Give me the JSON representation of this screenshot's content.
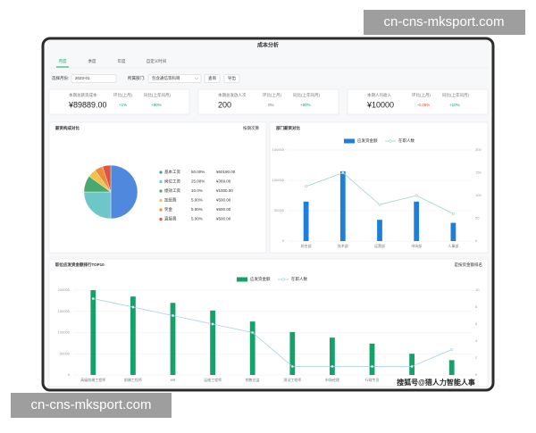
{
  "watermarks": [
    "cn-cns-mksport.com",
    "cn-cns-mksport.com"
  ],
  "title": "成本分析",
  "tabs": [
    "月度",
    "季度",
    "年度",
    "自定义时间"
  ],
  "active_tab": 0,
  "filters": {
    "month_label": "选择月份:",
    "month_value": "2023-01",
    "dept_label": "所属部门:",
    "dept_value": "包含通信等科目"
  },
  "buttons": [
    "查询",
    "导出"
  ],
  "kpis": [
    {
      "label": "本期总薪资成本",
      "value": "¥89889.00",
      "mom_label": "环比(上月)",
      "mom": "+1%",
      "yoy_label": "同比(上年同月)",
      "yoy": "+90%"
    },
    {
      "label": "本期总发放人次",
      "value": "200",
      "mom_label": "环比(上月)",
      "mom": "0%",
      "yoy_label": "同比(上年同月)",
      "yoy": "+50%"
    },
    {
      "label": "本期人均收入",
      "value": "¥10000",
      "mom_label": "环比(上月)",
      "mom": "-0.08%",
      "yoy_label": "同比(上年同月)",
      "yoy": "+10%"
    }
  ],
  "pie": {
    "type": "pie",
    "title": "薪资构成对比",
    "dropdown": "按期次算",
    "categories": [
      "基本工资",
      "岗位工资",
      "绩效工资",
      "加班费",
      "奖金",
      "直接费"
    ],
    "values": [
      50,
      25,
      10,
      5,
      5,
      5
    ],
    "value_labels": [
      "50.00%",
      "25.00%",
      "10.0%",
      "5.00%",
      "5.00%",
      "5.00%"
    ],
    "amounts": [
      "¥60190.00",
      "¥369.00",
      "¥1000.00",
      "¥500.00",
      "¥500.00",
      "¥500.00"
    ],
    "colors": [
      "#4f88dd",
      "#6ec6c8",
      "#49a86e",
      "#f2c14e",
      "#ef8c3b",
      "#e0533e"
    ]
  },
  "dept_chart": {
    "type": "bar-line",
    "title": "部门薪资对比",
    "categories": [
      "综合部",
      "技术部",
      "运营部",
      "市场部",
      "人事部"
    ],
    "series": [
      {
        "name": "应发资金额",
        "color": "#1e7fd8",
        "values": [
          65000,
          115000,
          35000,
          65000,
          30000
        ]
      },
      {
        "name": "在职人数",
        "color": "#9fd3cf",
        "values": [
          120,
          150,
          80,
          100,
          60
        ],
        "axis": "y2"
      }
    ],
    "ylim": [
      0,
      150000
    ],
    "yticks": [
      0,
      50000,
      100000,
      150000
    ],
    "y2lim": [
      0,
      200
    ],
    "y2ticks": [
      0,
      50,
      100,
      150,
      200
    ]
  },
  "rank_chart": {
    "type": "bar-line",
    "title": "职位应发资金额排行TOP10",
    "dropdown": "是按资金额排名",
    "categories": [
      "高级前端工程师",
      "前端工程师",
      "HR",
      "运维工程师",
      "销售总监",
      "测试工程师",
      "市场经理",
      "行政专员",
      "客服",
      "财务"
    ],
    "series": [
      {
        "name": "应发资金额",
        "color": "#16a06a",
        "values": [
          200000,
          185000,
          170000,
          152000,
          126000,
          101000,
          88000,
          74000,
          50000,
          35000
        ]
      },
      {
        "name": "在职人数",
        "color": "#a9cfe0",
        "values": [
          9,
          8,
          7,
          6,
          5,
          1,
          1,
          1,
          1,
          3
        ],
        "axis": "y2"
      }
    ],
    "ylim": [
      0,
      200000
    ],
    "yticks": [
      0,
      50000,
      100000,
      150000,
      200000
    ],
    "y2lim": [
      0,
      10
    ],
    "y2ticks": [
      0,
      2,
      4,
      6,
      8,
      10
    ]
  },
  "source_watermark": "搜狐号@猎人力智能人事"
}
